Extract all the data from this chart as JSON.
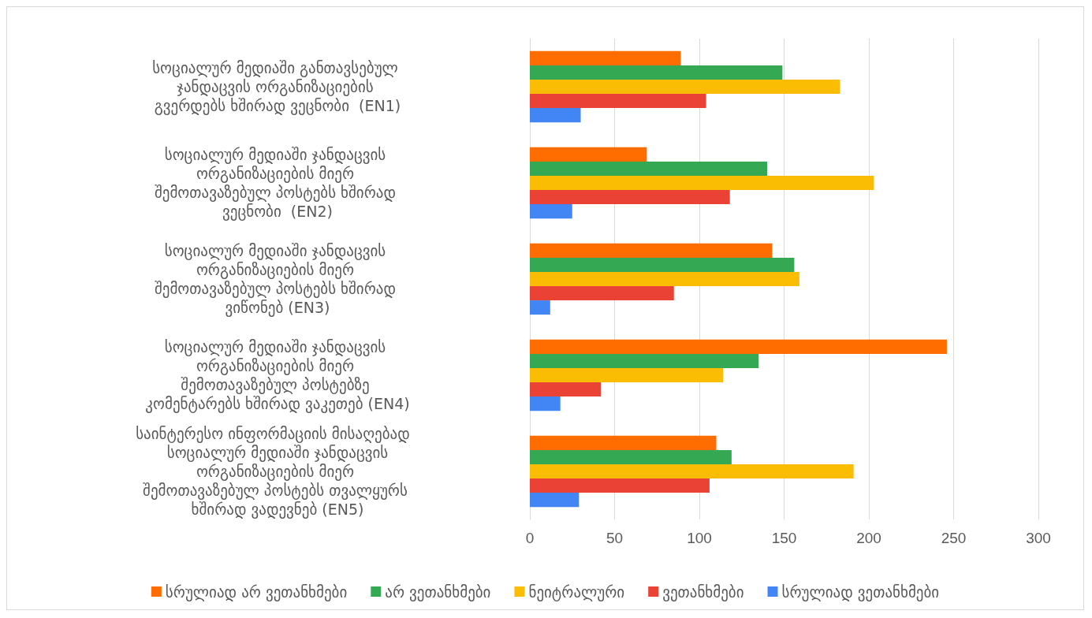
{
  "chart_data": {
    "type": "bar",
    "orientation": "horizontal",
    "categories": [
      "სოციალურ მედიაში განთავსებულ ჯანდაცვის ორგანიზაციების გვერდებს ხშირად ვეცნობი  (EN1)",
      "სოციალურ მედიაში ჯანდაცვის ორგანიზაციების მიერ შემოთავაზებულ პოსტებს ხშირად ვეცნობი  (EN2)",
      "სოციალურ მედიაში ჯანდაცვის ორგანიზაციების მიერ შემოთავაზებულ პოსტებს ხშირად ვიწონებ (EN3)",
      "სოციალურ მედიაში ჯანდაცვის ორგანიზაციების მიერ შემოთავაზებულ პოსტებზე კომენტარებს ხშირად ვაკეთებ (EN4)",
      "საინტერესო ინფორმაციის მისაღებად   სოციალურ მედიაში ჯანდაცვის ორგანიზაციების მიერ შემოთავაზებულ პოსტებს თვალყურს ხშირად ვადევნებ (EN5)"
    ],
    "series": [
      {
        "name": "სრულიად არ ვეთანხმები",
        "color": "#ff6d01",
        "values": [
          89,
          69,
          143,
          246,
          110
        ]
      },
      {
        "name": "არ ვეთანხმები",
        "color": "#34a853",
        "values": [
          149,
          140,
          156,
          135,
          119
        ]
      },
      {
        "name": "ნეიტრალური",
        "color": "#fbbc04",
        "values": [
          183,
          203,
          159,
          114,
          191
        ]
      },
      {
        "name": "ვეთანხმები",
        "color": "#ea4335",
        "values": [
          104,
          118,
          85,
          42,
          106
        ]
      },
      {
        "name": "სრულიად ვეთანხმები",
        "color": "#4285f4",
        "values": [
          30,
          25,
          12,
          18,
          29
        ]
      }
    ],
    "xlim": [
      0,
      300
    ],
    "xticks": [
      0,
      50,
      100,
      150,
      200,
      250,
      300
    ],
    "grid": "x",
    "legend": "bottom"
  }
}
